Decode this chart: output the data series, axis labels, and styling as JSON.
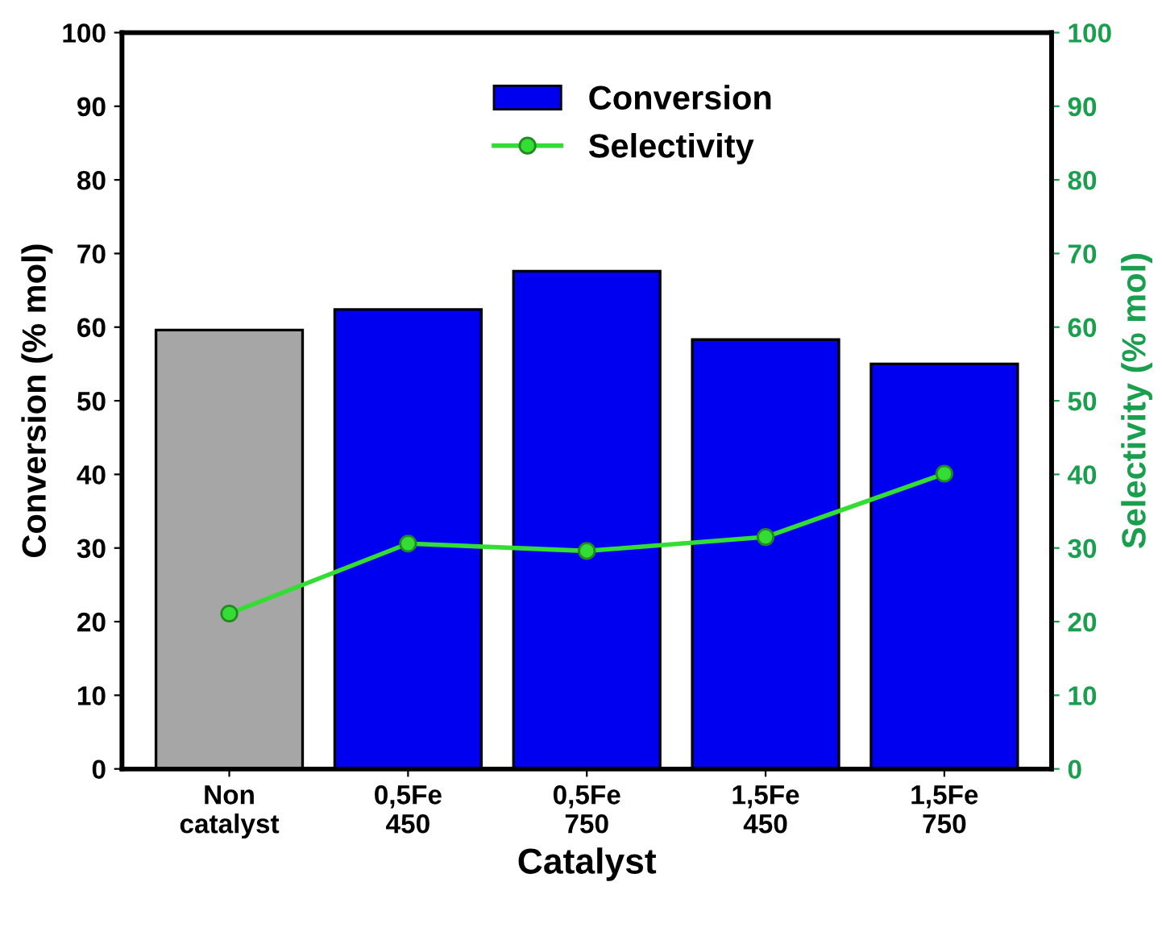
{
  "chart_data": {
    "type": "bar",
    "xlabel": "Catalyst",
    "ylabel": "Conversion (% mol)",
    "y2label": "Selectivity (% mol)",
    "categories": [
      "Non\ncatalyst",
      "0,5Fe\n450",
      "0,5Fe\n750",
      "1,5Fe\n450",
      "1,5Fe\n750"
    ],
    "series": [
      {
        "name": "Conversion",
        "colors": [
          "#a6a6a6",
          "#0000f0",
          "#0000f0",
          "#0000f0",
          "#0000f0"
        ],
        "color": "#0000f0",
        "values": [
          59.6,
          62.4,
          67.6,
          58.3,
          55.0
        ]
      },
      {
        "name": "Selectivity",
        "type": "line",
        "axis": "y2",
        "color": "#33dd33",
        "marker": "circle",
        "values": [
          21.1,
          30.6,
          29.6,
          31.5,
          40.1
        ]
      }
    ],
    "ylim": [
      0,
      100
    ],
    "yticks": [
      0,
      10,
      20,
      30,
      40,
      50,
      60,
      70,
      80,
      90,
      100
    ],
    "y2lim": [
      0,
      100
    ],
    "y2ticks": [
      0,
      10,
      20,
      30,
      40,
      50,
      60,
      70,
      80,
      90,
      100
    ],
    "grid": false,
    "legend": "top"
  }
}
